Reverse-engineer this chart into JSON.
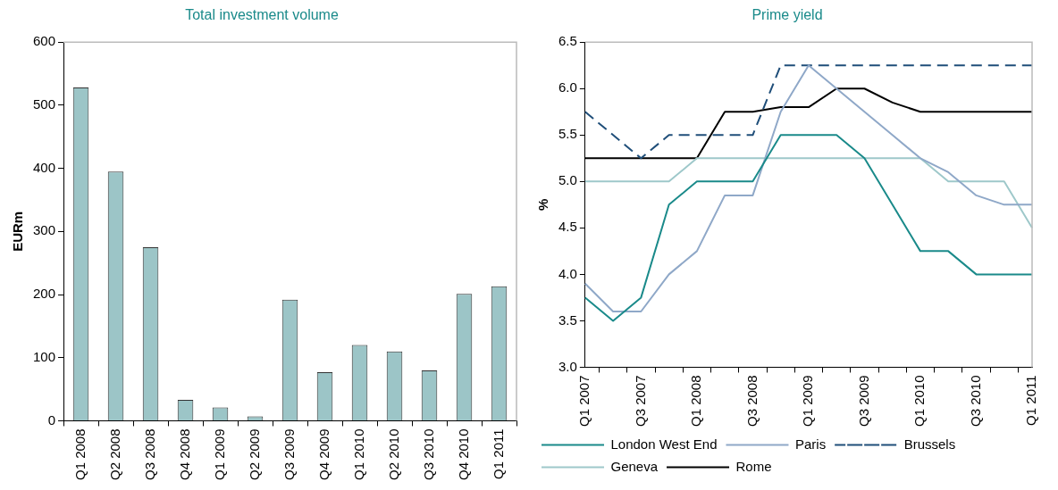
{
  "chart_data": [
    {
      "type": "bar",
      "title": "Total investment volume",
      "ylabel": "EURm",
      "categories": [
        "Q1 2008",
        "Q2 2008",
        "Q3 2008",
        "Q4 2008",
        "Q1 2009",
        "Q2 2009",
        "Q3 2009",
        "Q4 2009",
        "Q1 2010",
        "Q2 2010",
        "Q3 2010",
        "Q4 2010",
        "Q1 2011"
      ],
      "values": [
        528,
        395,
        275,
        33,
        21,
        7,
        192,
        77,
        120,
        110,
        80,
        201,
        213
      ],
      "color": "#9cc5c7",
      "ylim": [
        0,
        600
      ],
      "yticks": [
        0,
        100,
        200,
        300,
        400,
        500,
        600
      ],
      "grid": false,
      "legend": false
    },
    {
      "type": "line",
      "title": "Prime yield",
      "ylabel": "%",
      "categories": [
        "Q1 2007",
        null,
        "Q3 2007",
        null,
        "Q1 2008",
        null,
        "Q3 2008",
        null,
        "Q1 2009",
        null,
        "Q3 2009",
        null,
        "Q1 2010",
        null,
        "Q3 2010",
        null,
        "Q1 2011"
      ],
      "series": [
        {
          "name": "London West End",
          "color": "#1a8a8a",
          "values": [
            3.75,
            3.5,
            3.75,
            4.75,
            5.0,
            5.0,
            5.0,
            5.5,
            5.5,
            5.5,
            5.25,
            4.75,
            4.25,
            4.25,
            4.0,
            4.0,
            4.0
          ]
        },
        {
          "name": "Paris",
          "color": "#8fa8c8",
          "values": [
            3.9,
            3.6,
            3.6,
            4.0,
            4.25,
            4.85,
            4.85,
            5.75,
            6.25,
            6.0,
            5.75,
            5.5,
            5.25,
            5.1,
            4.85,
            4.75,
            4.75
          ]
        },
        {
          "name": "Brussels",
          "color": "#1f4e79",
          "line_style": "dashed",
          "values": [
            5.75,
            5.5,
            5.25,
            5.5,
            5.5,
            5.5,
            5.5,
            6.25,
            6.25,
            6.25,
            6.25,
            6.25,
            6.25,
            6.25,
            6.25,
            6.25,
            6.25
          ]
        },
        {
          "name": "Geneva",
          "color": "#9ec8ca",
          "values": [
            5.0,
            5.0,
            5.0,
            5.0,
            5.25,
            5.25,
            5.25,
            5.25,
            5.25,
            5.25,
            5.25,
            5.25,
            5.25,
            5.0,
            5.0,
            5.0,
            4.5
          ]
        },
        {
          "name": "Rome",
          "color": "#000000",
          "values": [
            5.25,
            5.25,
            5.25,
            5.25,
            5.25,
            5.75,
            5.75,
            5.8,
            5.8,
            6.0,
            6.0,
            5.85,
            5.75,
            5.75,
            5.75,
            5.75,
            5.75
          ]
        }
      ],
      "ylim": [
        3.0,
        6.5
      ],
      "yticks": [
        {
          "value": 3,
          "label": "3.0"
        },
        {
          "value": 3.5,
          "label": "3.5"
        },
        {
          "value": 4,
          "label": "4.0"
        },
        {
          "value": 4.5,
          "label": "4.5"
        },
        {
          "value": 5,
          "label": "5.0"
        },
        {
          "value": 5.5,
          "label": "5.5"
        },
        {
          "value": 6,
          "label": "6.0"
        },
        {
          "value": 6.5,
          "label": "6.5"
        }
      ],
      "grid": false,
      "legend": "bottom",
      "marker": "none"
    }
  ]
}
